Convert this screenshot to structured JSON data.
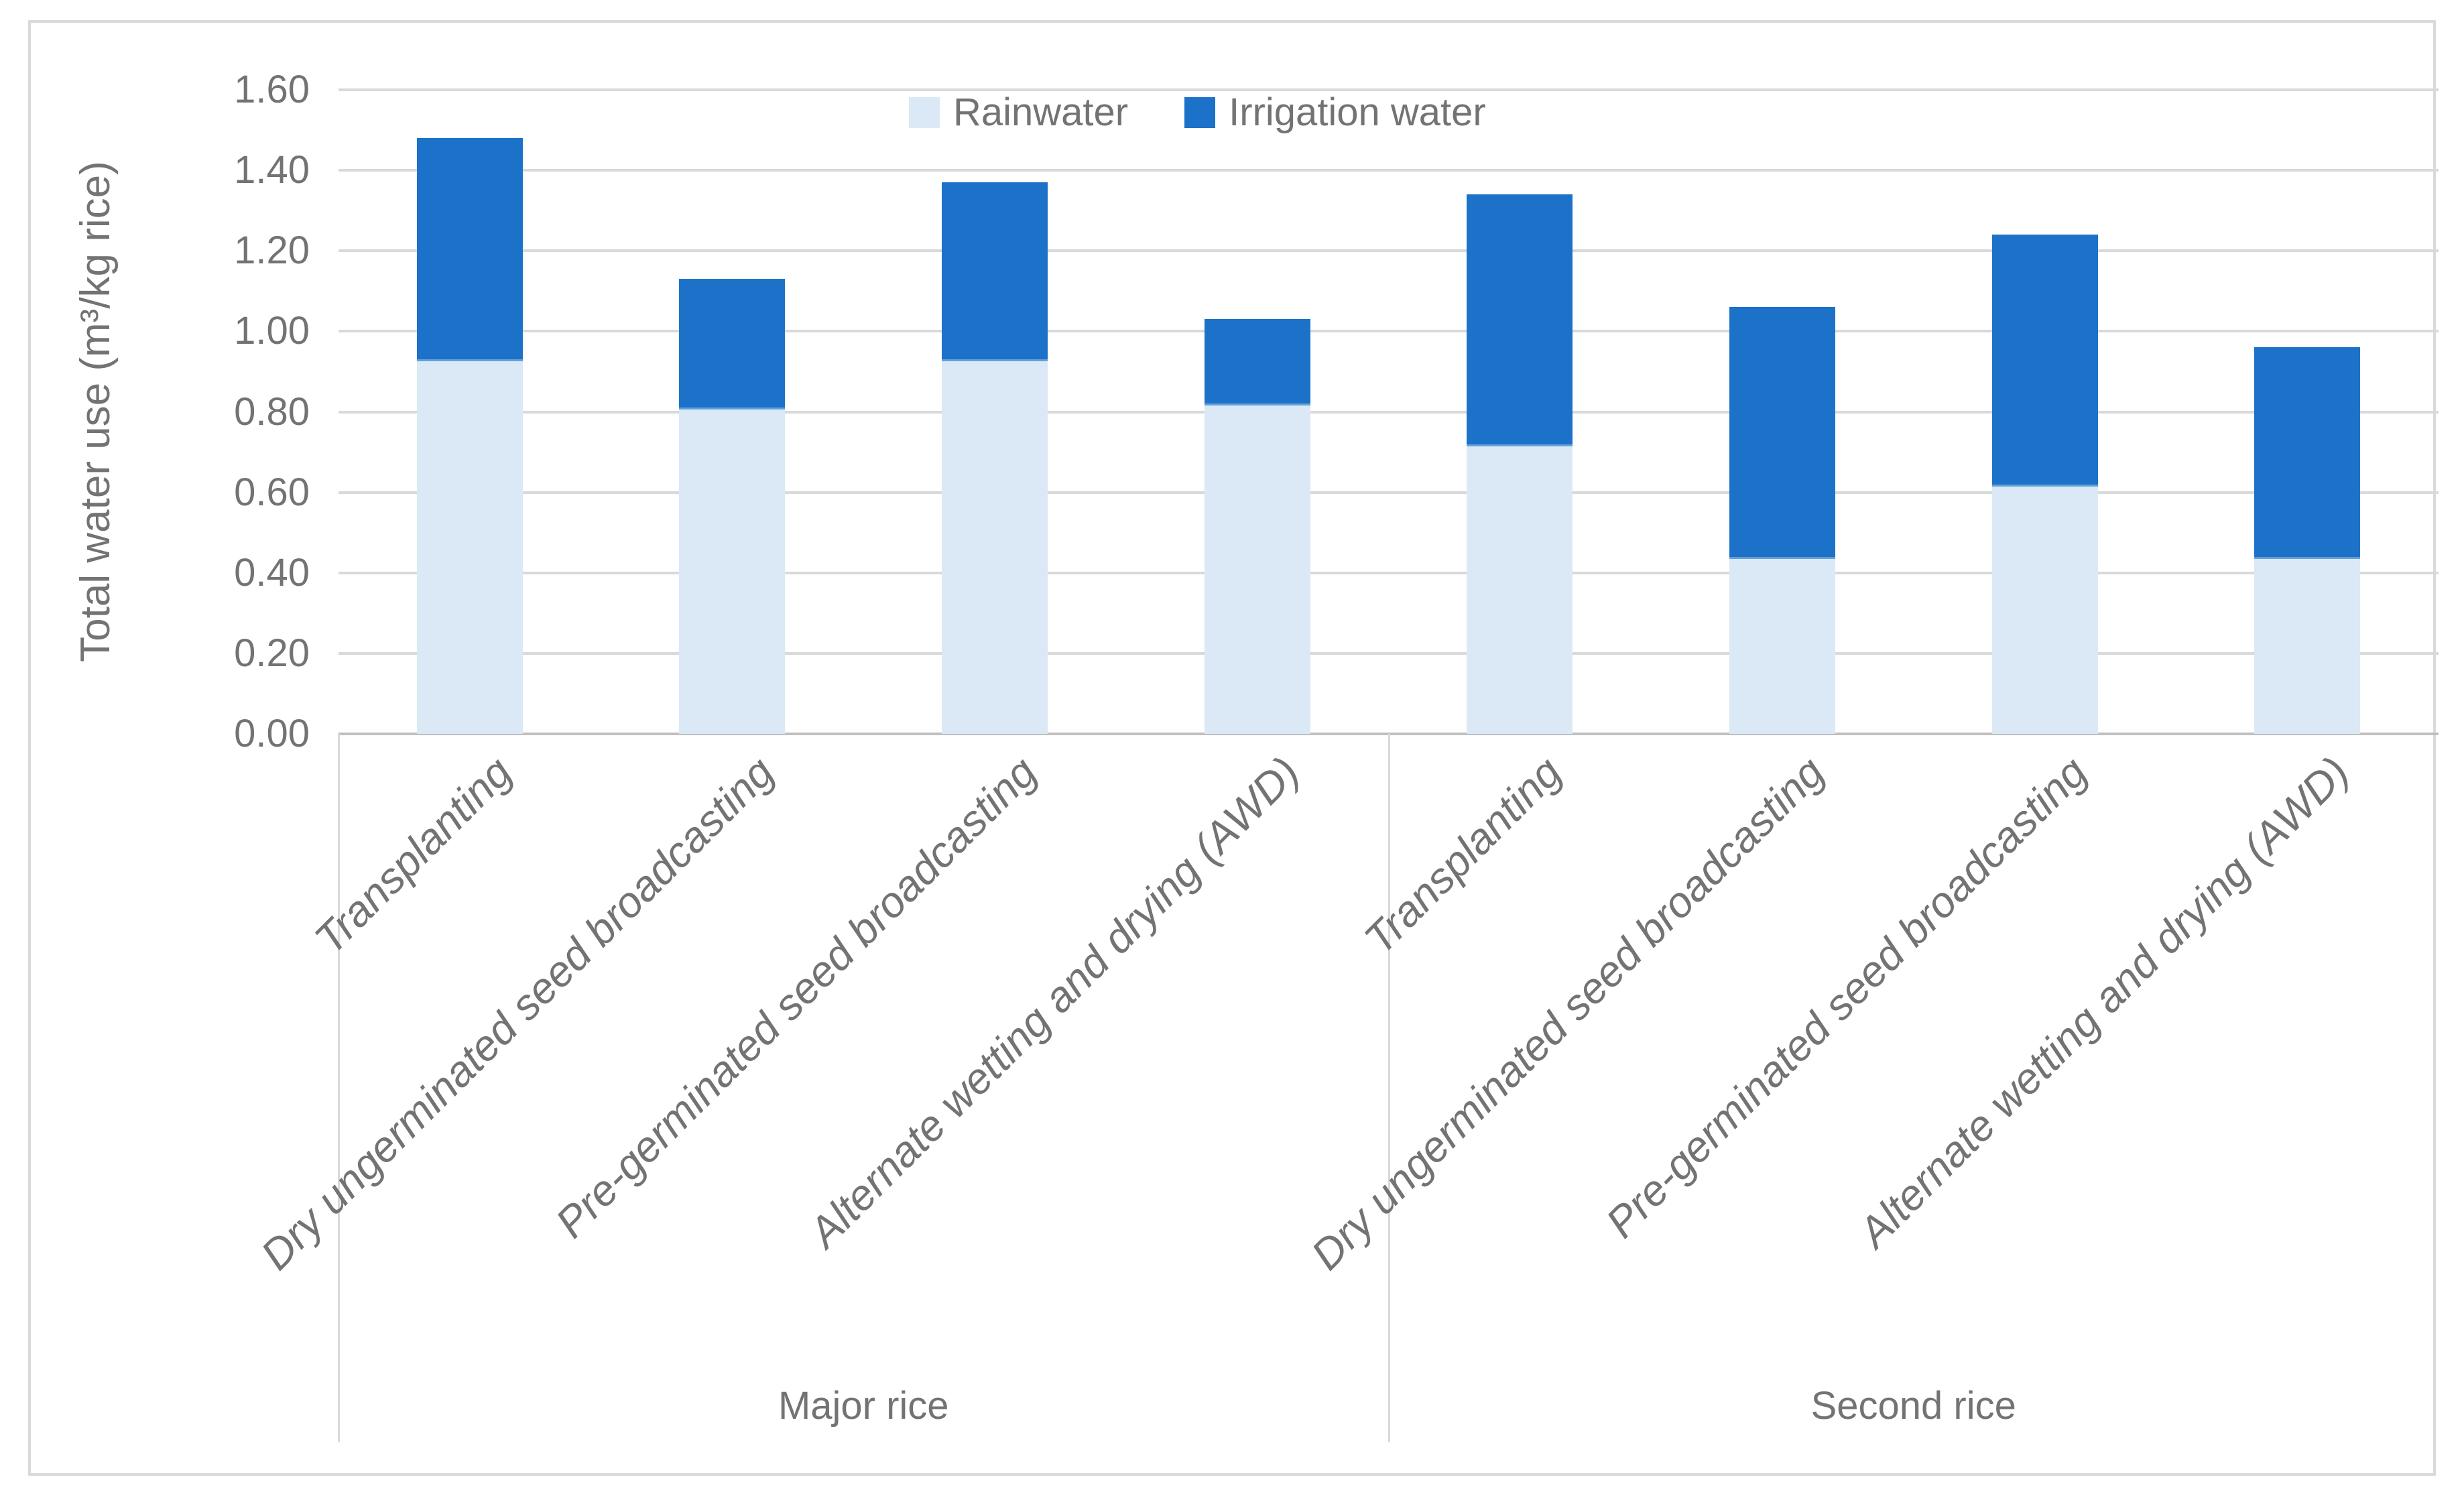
{
  "chart_data": {
    "type": "bar",
    "stacked": true,
    "title": "",
    "xlabel": "",
    "ylabel": "Total water use (m³/kg rice)",
    "ylim": [
      0.0,
      1.6
    ],
    "ytick_step": 0.2,
    "ytick_decimals": 2,
    "grid": true,
    "legend_position": "top-center",
    "group_labels": [
      "Major rice",
      "Second rice"
    ],
    "categories": [
      "Transplanting",
      "Dry ungerminated seed broadcasting",
      "Pre-germinated seed broadcasting",
      "Alternate wetting and drying (AWD)",
      "Transplanting",
      "Dry ungerminated seed broadcasting",
      "Pre-germinated seed broadcasting",
      "Alternate wetting and drying (AWD)"
    ],
    "category_groups": [
      0,
      0,
      0,
      0,
      1,
      1,
      1,
      1
    ],
    "series": [
      {
        "name": "Rainwater",
        "color": "#DAE9F5",
        "values": [
          0.93,
          0.81,
          0.93,
          0.82,
          0.72,
          0.44,
          0.62,
          0.44
        ]
      },
      {
        "name": "Irrigation water",
        "color": "#1B72C8",
        "values": [
          0.55,
          0.32,
          0.44,
          0.21,
          0.62,
          0.62,
          0.62,
          0.52
        ]
      }
    ],
    "stack_totals": [
      1.48,
      1.13,
      1.37,
      1.03,
      1.34,
      1.06,
      1.24,
      0.96
    ]
  },
  "colors": {
    "background": "#FFFFFF",
    "chart_border": "#D9D9D9",
    "gridline": "#D9D9D9",
    "axis_line": "#BFBFBF",
    "text": "#737373",
    "rain_seam": "#64A0D7"
  }
}
